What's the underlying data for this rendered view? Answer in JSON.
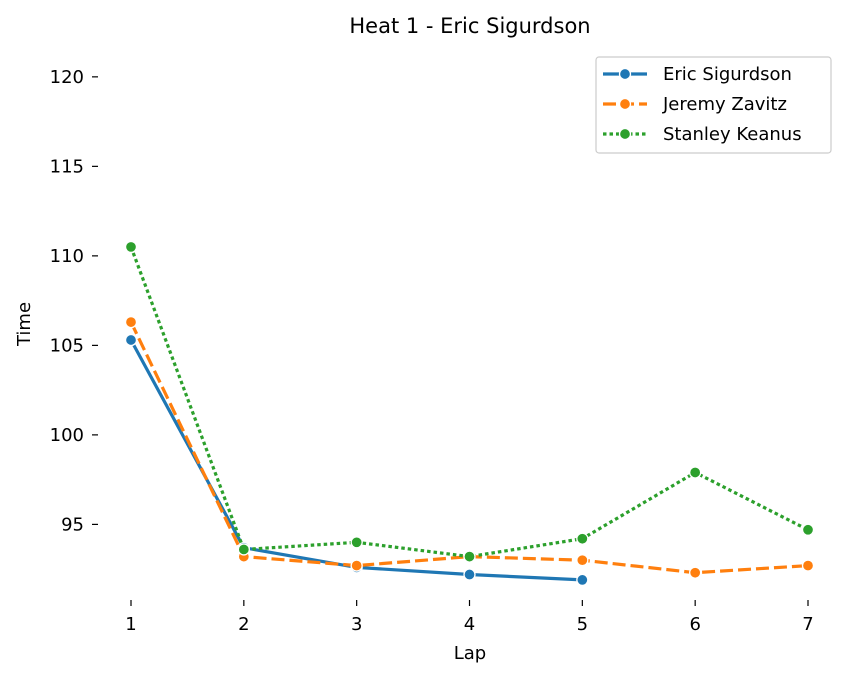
{
  "chart_data": {
    "type": "line",
    "title": "Heat 1 - Eric Sigurdson",
    "xlabel": "Lap",
    "ylabel": "Time",
    "x": [
      1,
      2,
      3,
      4,
      5,
      6,
      7
    ],
    "xlim": [
      1,
      7
    ],
    "ylim": [
      91.0,
      121.5
    ],
    "yticks": [
      95,
      100,
      105,
      110,
      115,
      120
    ],
    "grid": false,
    "legend_position": "top-right",
    "series": [
      {
        "name": "Eric Sigurdson",
        "color": "#1f77b4",
        "linestyle": "solid",
        "values": [
          105.3,
          93.7,
          92.6,
          92.2,
          91.9,
          null,
          null
        ]
      },
      {
        "name": "Jeremy Zavitz",
        "color": "#ff7f0e",
        "linestyle": "dashed",
        "values": [
          106.3,
          93.2,
          92.7,
          93.2,
          93.0,
          92.3,
          92.7
        ]
      },
      {
        "name": "Stanley Keanus",
        "color": "#2ca02c",
        "linestyle": "dotted",
        "values": [
          110.5,
          93.6,
          94.0,
          93.2,
          94.2,
          97.9,
          94.7
        ]
      }
    ]
  }
}
